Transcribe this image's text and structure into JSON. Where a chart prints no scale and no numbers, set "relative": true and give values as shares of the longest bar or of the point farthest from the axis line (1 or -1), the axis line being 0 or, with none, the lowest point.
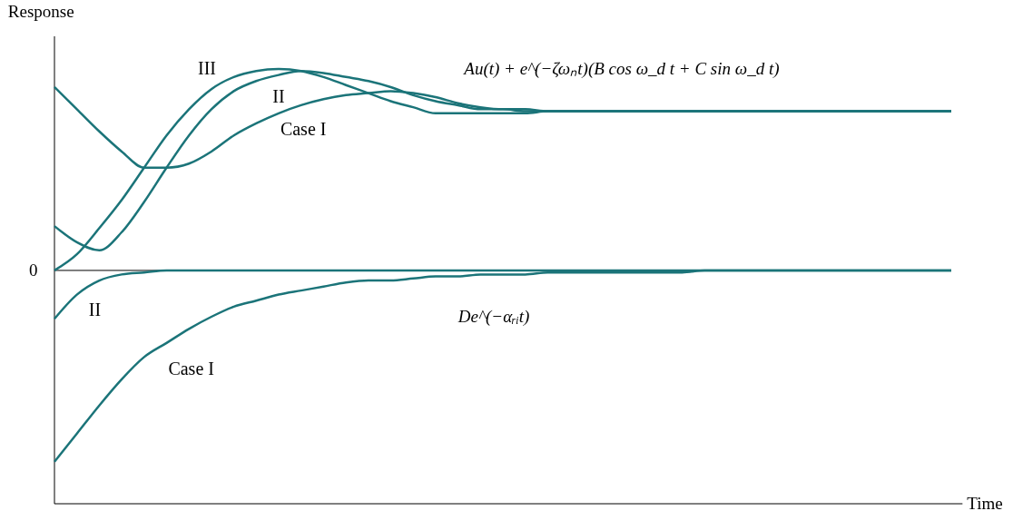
{
  "chart_data": {
    "type": "line",
    "relative": true,
    "grid": false,
    "marker": "none",
    "line_style": "solid",
    "xlabel": "Time",
    "ylabel": "Response",
    "categories": [
      null,
      null,
      null,
      null,
      null,
      null,
      null,
      null,
      null,
      null,
      null,
      null,
      null,
      null,
      null,
      null,
      null,
      null,
      null,
      null,
      null,
      null,
      null,
      null,
      null,
      null,
      null,
      null,
      null,
      null,
      null,
      null,
      null,
      null,
      null,
      null,
      null,
      null,
      null,
      null,
      null
    ],
    "annotations": [
      "0",
      "Au(t) + e^(−ζωₙt)(B cos ω_d t + C sin ω_d t)",
      "De^(−αᵣᵢt)"
    ],
    "series": [
      {
        "name": "Case I",
        "color": "#1b7479",
        "values": [
          0.91,
          0.8,
          0.69,
          0.59,
          0.51,
          0.51,
          0.53,
          0.59,
          0.67,
          0.73,
          0.78,
          0.82,
          0.85,
          0.87,
          0.88,
          0.89,
          0.88,
          0.86,
          0.83,
          0.81,
          0.8,
          0.8,
          0.79,
          0.79,
          0.79,
          0.79,
          0.79,
          0.79,
          0.79,
          0.79,
          0.79,
          0.79,
          0.79,
          0.79,
          0.79,
          0.79,
          0.79,
          0.79,
          0.79,
          0.79,
          0.79
        ]
      },
      {
        "name": "II",
        "color": "#1b7479",
        "values": [
          0.22,
          0.14,
          0.1,
          0.19,
          0.34,
          0.51,
          0.67,
          0.8,
          0.89,
          0.94,
          0.97,
          0.99,
          0.98,
          0.96,
          0.94,
          0.91,
          0.87,
          0.84,
          0.82,
          0.8,
          0.8,
          0.79,
          0.79,
          0.79,
          0.79,
          0.79,
          0.79,
          0.79,
          0.79,
          0.79,
          0.79,
          0.79,
          0.79,
          0.79,
          0.79,
          0.79,
          0.79,
          0.79,
          0.79,
          0.79,
          0.79
        ]
      },
      {
        "name": "III",
        "color": "#1b7479",
        "values": [
          0.0,
          0.08,
          0.21,
          0.35,
          0.51,
          0.67,
          0.8,
          0.9,
          0.96,
          0.99,
          1.0,
          0.99,
          0.96,
          0.92,
          0.88,
          0.84,
          0.81,
          0.78,
          0.78,
          0.78,
          0.78,
          0.78,
          0.79,
          0.79,
          0.79,
          0.79,
          0.79,
          0.79,
          0.79,
          0.79,
          0.79,
          0.79,
          0.79,
          0.79,
          0.79,
          0.79,
          0.79,
          0.79,
          0.79,
          0.79,
          0.79
        ]
      },
      {
        "name": "II",
        "color": "#1b7479",
        "values": [
          -0.24,
          -0.12,
          -0.05,
          -0.02,
          -0.01,
          0.0,
          0.0,
          0.0,
          0.0,
          0.0,
          0.0,
          0.0,
          0.0,
          0.0,
          0.0,
          0.0,
          0.0,
          0.0,
          0.0,
          0.0,
          0.0,
          0.0,
          0.0,
          0.0,
          0.0,
          0.0,
          0.0,
          0.0,
          0.0,
          0.0,
          0.0,
          0.0,
          0.0,
          0.0,
          0.0,
          0.0,
          0.0,
          0.0,
          0.0,
          0.0,
          0.0
        ]
      },
      {
        "name": "Case I",
        "color": "#1b7479",
        "values": [
          -0.95,
          -0.81,
          -0.67,
          -0.54,
          -0.43,
          -0.36,
          -0.29,
          -0.23,
          -0.18,
          -0.15,
          -0.12,
          -0.1,
          -0.08,
          -0.06,
          -0.05,
          -0.05,
          -0.04,
          -0.03,
          -0.03,
          -0.02,
          -0.02,
          -0.02,
          -0.01,
          -0.01,
          -0.01,
          -0.01,
          -0.01,
          -0.01,
          -0.01,
          0.0,
          0.0,
          0.0,
          0.0,
          0.0,
          0.0,
          0.0,
          0.0,
          0.0,
          0.0,
          0.0,
          0.0
        ]
      }
    ]
  }
}
